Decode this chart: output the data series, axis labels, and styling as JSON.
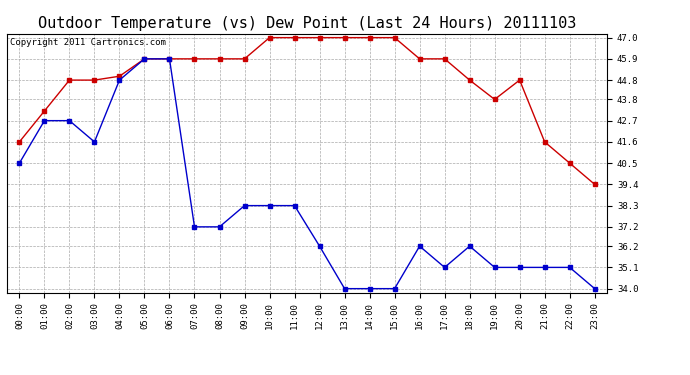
{
  "title": "Outdoor Temperature (vs) Dew Point (Last 24 Hours) 20111103",
  "copyright_text": "Copyright 2011 Cartronics.com",
  "x_labels": [
    "00:00",
    "01:00",
    "02:00",
    "03:00",
    "04:00",
    "05:00",
    "06:00",
    "07:00",
    "08:00",
    "09:00",
    "10:00",
    "11:00",
    "12:00",
    "13:00",
    "14:00",
    "15:00",
    "16:00",
    "17:00",
    "18:00",
    "19:00",
    "20:00",
    "21:00",
    "22:00",
    "23:00"
  ],
  "temp_data": [
    40.5,
    42.7,
    42.7,
    41.6,
    44.8,
    45.9,
    45.9,
    37.2,
    37.2,
    38.3,
    38.3,
    38.3,
    36.2,
    34.0,
    34.0,
    34.0,
    36.2,
    35.1,
    36.2,
    35.1,
    35.1,
    35.1,
    35.1,
    34.0
  ],
  "dew_data": [
    41.6,
    43.2,
    44.8,
    44.8,
    45.0,
    45.9,
    45.9,
    45.9,
    45.9,
    45.9,
    47.0,
    47.0,
    47.0,
    47.0,
    47.0,
    47.0,
    45.9,
    45.9,
    44.8,
    43.8,
    44.8,
    41.6,
    40.5,
    39.4
  ],
  "temp_color": "#0000cc",
  "dew_color": "#cc0000",
  "y_min": 34.0,
  "y_max": 47.0,
  "y_ticks": [
    34.0,
    35.1,
    36.2,
    37.2,
    38.3,
    39.4,
    40.5,
    41.6,
    42.7,
    43.8,
    44.8,
    45.9,
    47.0
  ],
  "background_color": "#ffffff",
  "plot_bg_color": "#ffffff",
  "grid_color": "#aaaaaa",
  "title_fontsize": 11,
  "copyright_fontsize": 6.5,
  "tick_fontsize": 6.5
}
